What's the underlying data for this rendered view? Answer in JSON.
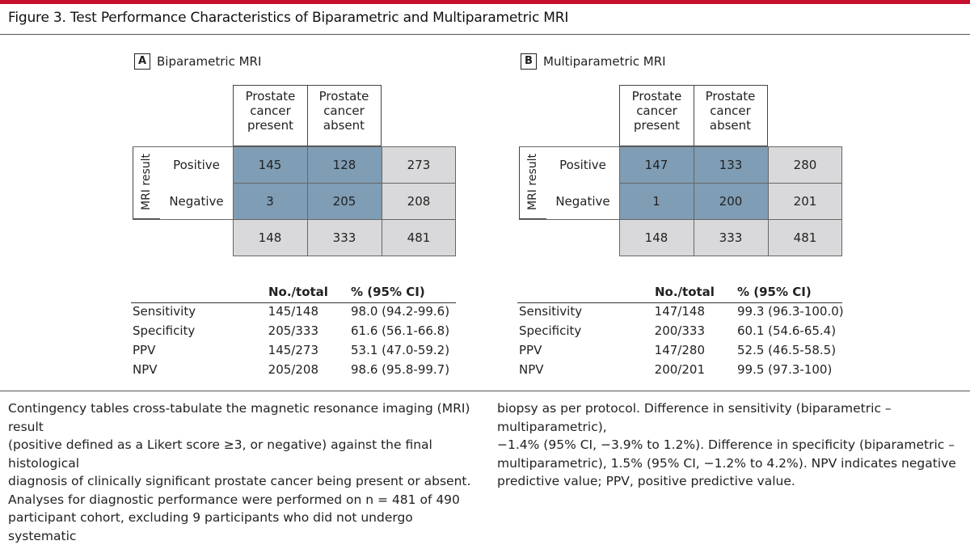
{
  "figure_title": "Figure 3. Test Performance Characteristics of Biparametric and Multiparametric MRI",
  "colors": {
    "accent_bar": "#c8102e",
    "cell_blue": "#7f9db4",
    "cell_gray": "#d9d9db"
  },
  "panels": [
    {
      "letter": "A",
      "title": "Biparametric MRI",
      "col_headers": [
        "Prostate\ncancer\npresent",
        "Prostate\ncancer\nabsent"
      ],
      "row_axis_label": "MRI result",
      "row_labels": [
        "Positive",
        "Negative"
      ],
      "cells": [
        [
          "145",
          "128",
          "273"
        ],
        [
          "3",
          "205",
          "208"
        ]
      ],
      "col_totals": [
        "148",
        "333",
        "481"
      ],
      "stats_header": {
        "count": "No./total",
        "pct": "% (95% CI)"
      },
      "stats": [
        {
          "label": "Sensitivity",
          "frac": "145/148",
          "pct": "98.0 (94.2-99.6)"
        },
        {
          "label": "Specificity",
          "frac": "205/333",
          "pct": "61.6 (56.1-66.8)"
        },
        {
          "label": "PPV",
          "frac": "145/273",
          "pct": "53.1 (47.0-59.2)"
        },
        {
          "label": "NPV",
          "frac": "205/208",
          "pct": "98.6 (95.8-99.7)"
        }
      ]
    },
    {
      "letter": "B",
      "title": "Multiparametric MRI",
      "col_headers": [
        "Prostate\ncancer\npresent",
        "Prostate\ncancer\nabsent"
      ],
      "row_axis_label": "MRI result",
      "row_labels": [
        "Positive",
        "Negative"
      ],
      "cells": [
        [
          "147",
          "133",
          "280"
        ],
        [
          "1",
          "200",
          "201"
        ]
      ],
      "col_totals": [
        "148",
        "333",
        "481"
      ],
      "stats_header": {
        "count": "No./total",
        "pct": "% (95% CI)"
      },
      "stats": [
        {
          "label": "Sensitivity",
          "frac": "147/148",
          "pct": "99.3 (96.3-100.0)"
        },
        {
          "label": "Specificity",
          "frac": "200/333",
          "pct": "60.1 (54.6-65.4)"
        },
        {
          "label": "PPV",
          "frac": "147/280",
          "pct": "52.5 (46.5-58.5)"
        },
        {
          "label": "NPV",
          "frac": "200/201",
          "pct": "99.5 (97.3-100)"
        }
      ]
    }
  ],
  "caption": {
    "left_lines": [
      "Contingency tables cross-tabulate the magnetic resonance imaging (MRI) result",
      "(positive defined as a Likert score ≥3, or negative) against the final histological",
      "diagnosis of clinically significant prostate cancer being present or absent.",
      "Analyses for diagnostic performance were performed on n = 481 of 490",
      "participant cohort, excluding 9 participants who did not undergo systematic"
    ],
    "right_lines": [
      "biopsy as per protocol. Difference in sensitivity (biparametric – multiparametric),",
      "−1.4% (95% CI, −3.9% to 1.2%). Difference in specificity (biparametric –",
      "multiparametric), 1.5% (95% CI, −1.2% to 4.2%). NPV indicates negative",
      "predictive value; PPV, positive predictive value."
    ]
  }
}
